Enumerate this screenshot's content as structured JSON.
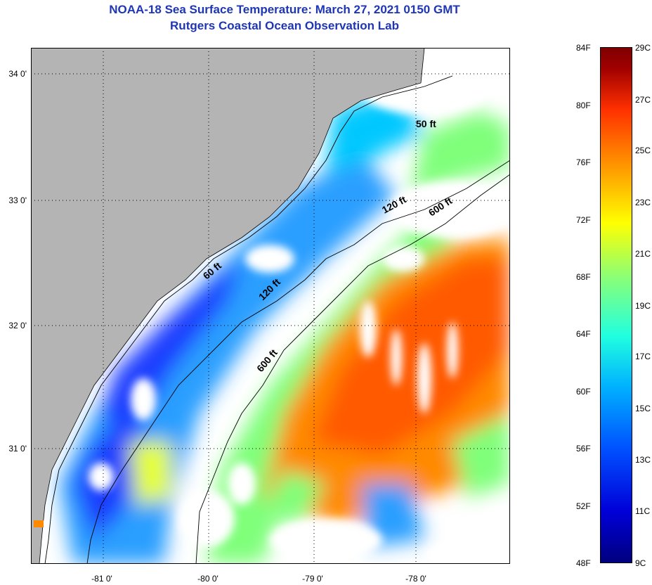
{
  "title_line1": "NOAA-18 Sea Surface Temperature:  March 27, 2021 0150 GMT",
  "title_line2": "Rutgers Coastal Ocean Observation Lab",
  "lat_labels": [
    "34 0'",
    "33 0'",
    "32 0'",
    "31 0'"
  ],
  "lon_labels": [
    "-81 0'",
    "-80 0'",
    "-79 0'",
    "-78 0'"
  ],
  "isobath_labels": [
    "50 ft",
    "120 ft",
    "600 ft",
    "60 ft",
    "120 ft",
    "600 ft"
  ],
  "colorbar": {
    "fahrenheit": [
      "84F",
      "80F",
      "76F",
      "72F",
      "68F",
      "64F",
      "60F",
      "56F",
      "52F",
      "48F"
    ],
    "celsius": [
      "29C",
      "27C",
      "25C",
      "23C",
      "21C",
      "19C",
      "17C",
      "15C",
      "13C",
      "11C",
      "9C"
    ]
  },
  "colors": {
    "land": "#b4b4b4",
    "title": "#1f36b4",
    "cloud": "#ffffff"
  }
}
